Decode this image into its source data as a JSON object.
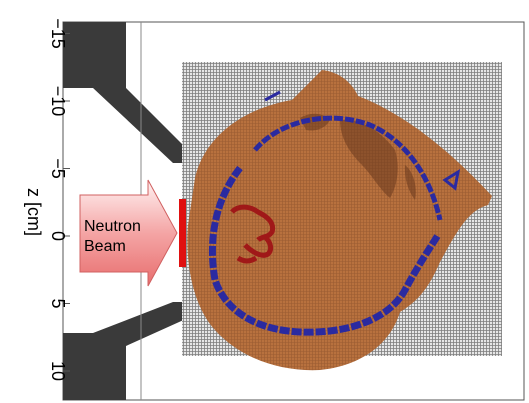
{
  "axis": {
    "label": "z [cm]",
    "ticks": [
      {
        "value": -15,
        "label": "−15"
      },
      {
        "value": -10,
        "label": "−10"
      },
      {
        "value": -5,
        "label": "−5"
      },
      {
        "value": 0,
        "label": "0"
      },
      {
        "value": 5,
        "label": "5"
      },
      {
        "value": 10,
        "label": "10"
      }
    ]
  },
  "beam": {
    "line1": "Neutron",
    "line2": "Beam"
  },
  "colors": {
    "tissue": "#b8713e",
    "tissue_dark": "#8a4f29",
    "skull": "#2a2aa0",
    "tumor": "#a01818",
    "grid": "#8c8c8c",
    "collimator": "#3a3a3a",
    "beam_window": "#e01010",
    "arrow_fill": "#f39a9a",
    "frame": "#555555"
  }
}
